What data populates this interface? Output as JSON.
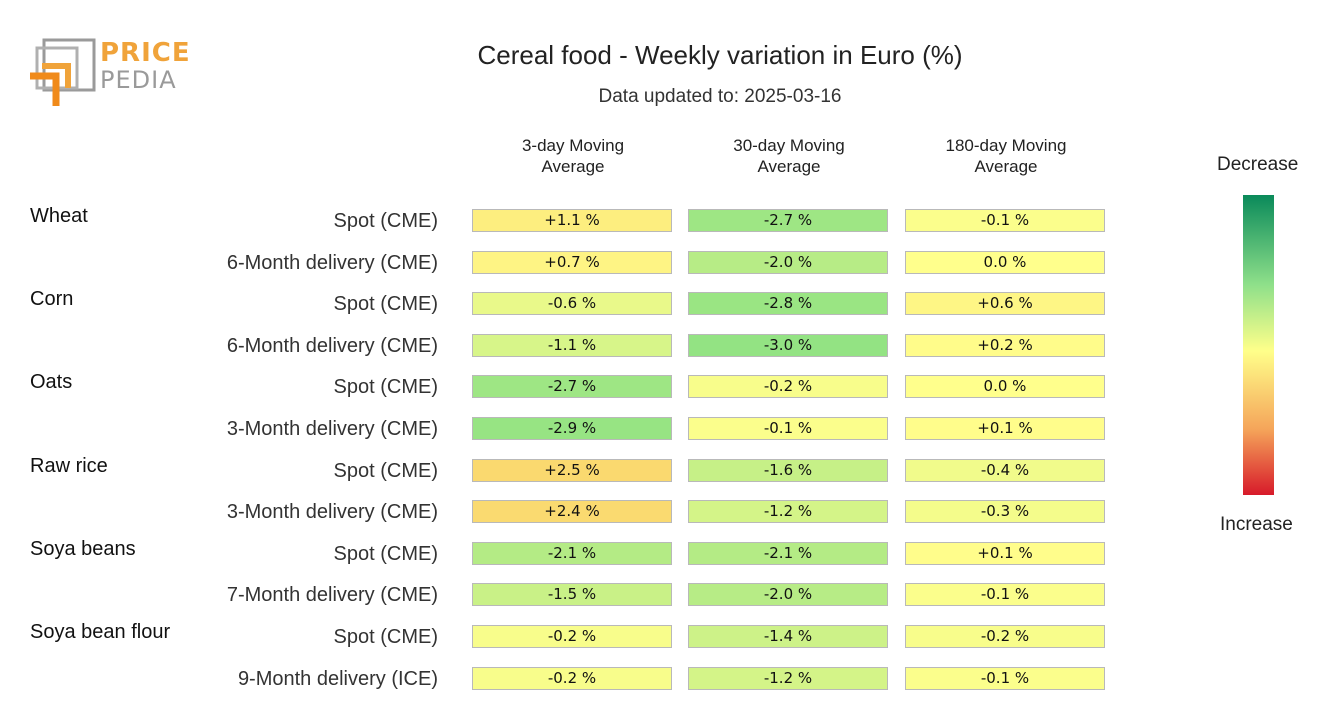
{
  "logo": {
    "line1": "PRICE",
    "line2": "PEDIA",
    "accent_color": "#f0a33a",
    "gray_color": "#9a9a9a"
  },
  "chart_data": {
    "type": "table",
    "title": "Cereal food - Weekly variation in Euro (%)",
    "subtitle": "Data updated to: 2025-03-16",
    "columns": [
      "3-day Moving Average",
      "30-day Moving Average",
      "180-day Moving Average"
    ],
    "groups": [
      {
        "name": "Wheat",
        "rows": [
          {
            "label": "Spot (CME)",
            "values": [
              1.1,
              -2.7,
              -0.1
            ],
            "display": [
              "+1.1 %",
              "-2.7 %",
              "-0.1 %"
            ]
          },
          {
            "label": "6-Month delivery (CME)",
            "values": [
              0.7,
              -2.0,
              0.0
            ],
            "display": [
              "+0.7 %",
              "-2.0 %",
              "0.0 %"
            ]
          }
        ]
      },
      {
        "name": "Corn",
        "rows": [
          {
            "label": "Spot (CME)",
            "values": [
              -0.6,
              -2.8,
              0.6
            ],
            "display": [
              "-0.6 %",
              "-2.8 %",
              "+0.6 %"
            ]
          },
          {
            "label": "6-Month delivery (CME)",
            "values": [
              -1.1,
              -3.0,
              0.2
            ],
            "display": [
              "-1.1 %",
              "-3.0 %",
              "+0.2 %"
            ]
          }
        ]
      },
      {
        "name": "Oats",
        "rows": [
          {
            "label": "Spot (CME)",
            "values": [
              -2.7,
              -0.2,
              0.0
            ],
            "display": [
              "-2.7 %",
              "-0.2 %",
              "0.0 %"
            ]
          },
          {
            "label": "3-Month delivery (CME)",
            "values": [
              -2.9,
              -0.1,
              0.1
            ],
            "display": [
              "-2.9 %",
              "-0.1 %",
              "+0.1 %"
            ]
          }
        ]
      },
      {
        "name": "Raw rice",
        "rows": [
          {
            "label": "Spot (CME)",
            "values": [
              2.5,
              -1.6,
              -0.4
            ],
            "display": [
              "+2.5 %",
              "-1.6 %",
              "-0.4 %"
            ]
          },
          {
            "label": "3-Month delivery (CME)",
            "values": [
              2.4,
              -1.2,
              -0.3
            ],
            "display": [
              "+2.4 %",
              "-1.2 %",
              "-0.3 %"
            ]
          }
        ]
      },
      {
        "name": "Soya beans",
        "rows": [
          {
            "label": "Spot (CME)",
            "values": [
              -2.1,
              -2.1,
              0.1
            ],
            "display": [
              "-2.1 %",
              "-2.1 %",
              "+0.1 %"
            ]
          },
          {
            "label": "7-Month delivery (CME)",
            "values": [
              -1.5,
              -2.0,
              -0.1
            ],
            "display": [
              "-1.5 %",
              "-2.0 %",
              "-0.1 %"
            ]
          }
        ]
      },
      {
        "name": "Soya bean flour",
        "rows": [
          {
            "label": "Spot (CME)",
            "values": [
              -0.2,
              -1.4,
              -0.2
            ],
            "display": [
              "-0.2 %",
              "-1.4 %",
              "-0.2 %"
            ]
          },
          {
            "label": "9-Month delivery (ICE)",
            "values": [
              -0.2,
              -1.2,
              -0.1
            ],
            "display": [
              "-0.2 %",
              "-1.2 %",
              "-0.1 %"
            ]
          }
        ]
      }
    ],
    "legend": {
      "top": "Decrease",
      "bottom": "Increase",
      "colors": [
        "#0a8a5a",
        "#8fe08a",
        "#ffff8a",
        "#f5a55a",
        "#d71a2a"
      ]
    }
  }
}
